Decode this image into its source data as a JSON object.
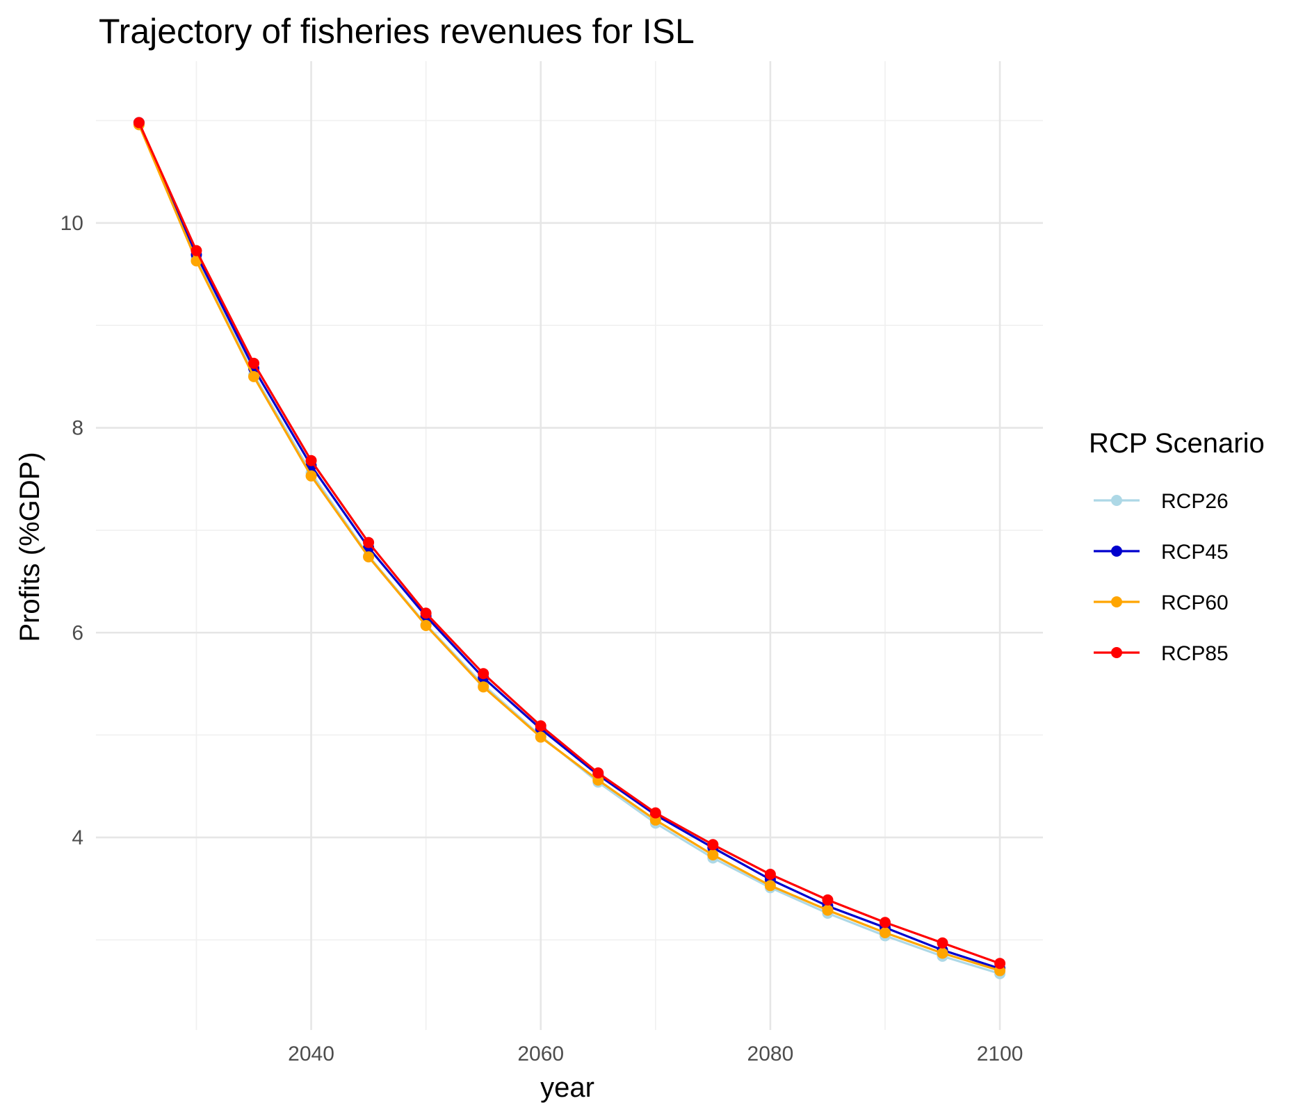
{
  "chart_data": {
    "type": "line",
    "title": "Trajectory of fisheries revenues for ISL",
    "xlabel": "year",
    "ylabel": "Profits (%GDP)",
    "x": [
      2025,
      2030,
      2035,
      2040,
      2045,
      2050,
      2055,
      2060,
      2065,
      2070,
      2075,
      2080,
      2085,
      2090,
      2095,
      2100
    ],
    "xlim": [
      2021.25,
      2103.75
    ],
    "ylim": [
      2.12,
      11.58
    ],
    "x_ticks": [
      2040,
      2060,
      2080,
      2100
    ],
    "x_tick_labels": [
      "2040",
      "2060",
      "2080",
      "2100"
    ],
    "y_ticks": [
      4,
      6,
      8,
      10
    ],
    "y_tick_labels": [
      "4",
      "6",
      "8",
      "10"
    ],
    "grid": true,
    "legend": {
      "title": "RCP Scenario",
      "position": "right"
    },
    "series": [
      {
        "name": "RCP26",
        "color": "#add8e6",
        "values": [
          10.96,
          9.65,
          8.52,
          7.56,
          6.75,
          6.08,
          5.49,
          4.99,
          4.54,
          4.14,
          3.8,
          3.51,
          3.26,
          3.04,
          2.84,
          2.67
        ]
      },
      {
        "name": "RCP45",
        "color": "#0000cd",
        "values": [
          10.98,
          9.69,
          8.58,
          7.63,
          6.83,
          6.16,
          5.56,
          5.06,
          4.61,
          4.22,
          3.9,
          3.59,
          3.33,
          3.12,
          2.9,
          2.72
        ]
      },
      {
        "name": "RCP60",
        "color": "#ffa500",
        "values": [
          10.96,
          9.63,
          8.5,
          7.53,
          6.74,
          6.07,
          5.47,
          4.98,
          4.56,
          4.17,
          3.83,
          3.53,
          3.29,
          3.07,
          2.87,
          2.7
        ]
      },
      {
        "name": "RCP85",
        "color": "#ff0000",
        "values": [
          10.98,
          9.73,
          8.63,
          7.68,
          6.88,
          6.19,
          5.6,
          5.09,
          4.63,
          4.24,
          3.93,
          3.64,
          3.39,
          3.17,
          2.97,
          2.77
        ]
      }
    ]
  }
}
